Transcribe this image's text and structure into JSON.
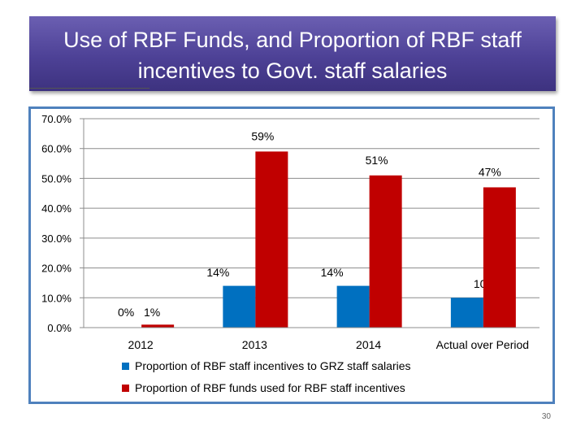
{
  "slide": {
    "title_line1": "Use of RBF Funds, and Proportion of RBF staff",
    "title_line2": "incentives to Govt. staff salaries",
    "page_number": "30"
  },
  "colors": {
    "title_bg": "#4d4196",
    "frame": "#4f81bd",
    "series_blue": "#0070c0",
    "series_red": "#c00000"
  },
  "chart_data": {
    "type": "bar",
    "title": "",
    "xlabel": "",
    "ylabel": "",
    "ylim": [
      0,
      0.7
    ],
    "y_ticks": [
      0,
      0.1,
      0.2,
      0.3,
      0.4,
      0.5,
      0.6,
      0.7
    ],
    "y_tick_labels": [
      "0.0%",
      "10.0%",
      "20.0%",
      "30.0%",
      "40.0%",
      "50.0%",
      "60.0%",
      "70.0%"
    ],
    "grid": true,
    "legend_position": "bottom",
    "categories": [
      "2012",
      "2013",
      "2014",
      "Actual over Period"
    ],
    "series": [
      {
        "name": "Proportion of RBF staff incentives to GRZ staff salaries",
        "color": "#0070c0",
        "values": [
          0.0,
          0.14,
          0.14,
          0.1
        ],
        "labels": [
          "0%",
          "14%",
          "14%",
          "10%"
        ]
      },
      {
        "name": "Proportion of RBF funds used for RBF staff incentives",
        "color": "#c00000",
        "values": [
          0.01,
          0.59,
          0.51,
          0.47
        ],
        "labels": [
          "1%",
          "59%",
          "51%",
          "47%"
        ]
      }
    ]
  }
}
